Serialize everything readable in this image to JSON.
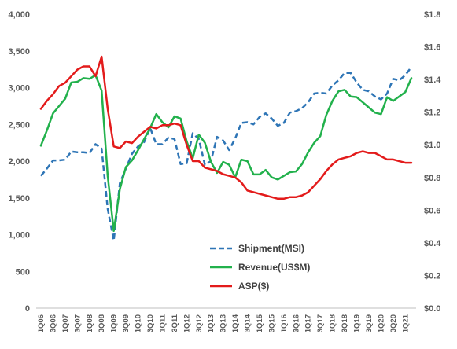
{
  "chart_data": {
    "type": "line",
    "title": "",
    "xlabel": "",
    "ylabel": "",
    "y2label": "",
    "grid": false,
    "legend_position": "center",
    "ylim_left": [
      0,
      4000
    ],
    "ylim_right": [
      0.0,
      1.8
    ],
    "left_ticks": [
      "0",
      "500",
      "1,000",
      "1,500",
      "2,000",
      "2,500",
      "3,000",
      "3,500",
      "4,000"
    ],
    "left_tick_values": [
      0,
      500,
      1000,
      1500,
      2000,
      2500,
      3000,
      3500,
      4000
    ],
    "right_ticks": [
      "$0.0",
      "$0.2",
      "$0.4",
      "$0.6",
      "$0.8",
      "$1.0",
      "$1.2",
      "$1.4",
      "$1.6",
      "$1.8"
    ],
    "right_tick_values": [
      0.0,
      0.2,
      0.4,
      0.6,
      0.8,
      1.0,
      1.2,
      1.4,
      1.6,
      1.8
    ],
    "x": [
      "1Q06",
      "2Q06",
      "3Q06",
      "4Q06",
      "1Q07",
      "2Q07",
      "3Q07",
      "4Q07",
      "1Q08",
      "2Q08",
      "3Q08",
      "4Q08",
      "1Q09",
      "2Q09",
      "3Q09",
      "4Q09",
      "1Q10",
      "2Q10",
      "3Q10",
      "4Q10",
      "1Q11",
      "2Q11",
      "3Q11",
      "4Q11",
      "1Q12",
      "2Q12",
      "3Q12",
      "4Q12",
      "1Q13",
      "2Q13",
      "3Q13",
      "4Q13",
      "1Q14",
      "2Q14",
      "3Q14",
      "4Q14",
      "1Q15",
      "2Q15",
      "3Q15",
      "4Q15",
      "1Q16",
      "2Q16",
      "3Q16",
      "4Q16",
      "1Q17",
      "2Q17",
      "3Q17",
      "4Q17",
      "1Q18",
      "2Q18",
      "3Q18",
      "4Q18",
      "1Q19",
      "2Q19",
      "3Q19",
      "4Q19",
      "1Q20",
      "2Q20",
      "3Q20",
      "4Q20",
      "1Q21",
      "2Q21"
    ],
    "x_tick_labels": [
      "1Q06",
      "3Q06",
      "1Q07",
      "3Q07",
      "1Q08",
      "3Q08",
      "1Q09",
      "3Q09",
      "1Q10",
      "3Q10",
      "1Q11",
      "3Q11",
      "1Q12",
      "3Q12",
      "1Q13",
      "3Q13",
      "1Q14",
      "3Q14",
      "1Q15",
      "3Q15",
      "1Q16",
      "3Q16",
      "1Q17",
      "3Q17",
      "1Q18",
      "3Q18",
      "1Q19",
      "3Q19",
      "1Q20",
      "3Q20",
      "1Q21"
    ],
    "series": [
      {
        "name": "Shipment(MSI)",
        "axis": "left",
        "color": "#2E75B6",
        "dash": "dashed",
        "values": [
          1800,
          1900,
          2010,
          2010,
          2020,
          2130,
          2120,
          2120,
          2110,
          2230,
          2170,
          1350,
          920,
          1700,
          1900,
          2100,
          2200,
          2260,
          2450,
          2230,
          2230,
          2320,
          2300,
          1960,
          1970,
          2380,
          2300,
          1950,
          2000,
          2330,
          2280,
          2150,
          2310,
          2520,
          2530,
          2500,
          2600,
          2650,
          2580,
          2480,
          2520,
          2660,
          2680,
          2720,
          2800,
          2920,
          2930,
          2920,
          3030,
          3100,
          3200,
          3200,
          3070,
          2970,
          2950,
          2880,
          2840,
          2920,
          3120,
          3100,
          3170,
          3280
        ]
      },
      {
        "name": "Revenue(US$M)",
        "axis": "left",
        "color": "#22B14C",
        "dash": "solid",
        "values": [
          2210,
          2420,
          2650,
          2750,
          2850,
          3070,
          3080,
          3130,
          3120,
          3170,
          2960,
          1800,
          1050,
          1620,
          1920,
          2010,
          2150,
          2300,
          2450,
          2640,
          2530,
          2460,
          2610,
          2580,
          2270,
          2040,
          2360,
          2250,
          1990,
          1840,
          1990,
          1950,
          1780,
          2020,
          2000,
          1820,
          1820,
          1880,
          1780,
          1750,
          1800,
          1850,
          1860,
          1960,
          2120,
          2250,
          2340,
          2630,
          2820,
          2950,
          2970,
          2880,
          2870,
          2800,
          2730,
          2660,
          2640,
          2870,
          2820,
          2880,
          2940,
          3130
        ]
      },
      {
        "name": "ASP($)",
        "axis": "right",
        "color": "#E31B1B",
        "dash": "solid",
        "values": [
          1.22,
          1.27,
          1.31,
          1.36,
          1.38,
          1.42,
          1.46,
          1.48,
          1.48,
          1.42,
          1.54,
          1.22,
          0.99,
          0.98,
          1.02,
          1.01,
          1.05,
          1.08,
          1.11,
          1.1,
          1.12,
          1.12,
          1.13,
          1.12,
          1.0,
          0.9,
          0.9,
          0.86,
          0.85,
          0.84,
          0.82,
          0.81,
          0.8,
          0.77,
          0.72,
          0.71,
          0.7,
          0.69,
          0.68,
          0.67,
          0.67,
          0.68,
          0.68,
          0.69,
          0.71,
          0.75,
          0.79,
          0.84,
          0.88,
          0.91,
          0.92,
          0.93,
          0.95,
          0.96,
          0.95,
          0.95,
          0.93,
          0.91,
          0.91,
          0.9,
          0.89,
          0.89
        ]
      }
    ]
  }
}
